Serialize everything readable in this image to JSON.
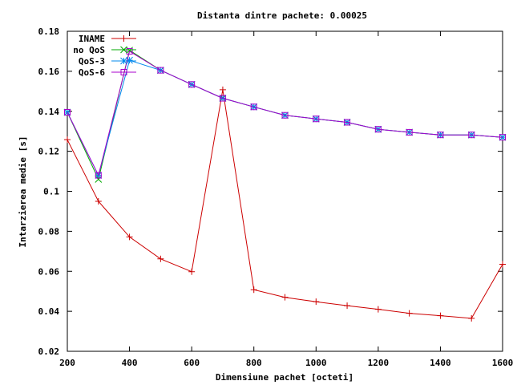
{
  "chart_data": {
    "type": "line",
    "title": "Distanta dintre pachete: 0.00025",
    "xlabel": "Dimensiune pachet [octeti]",
    "ylabel": "Intarzierea medie [s]",
    "xlim": [
      200,
      1600
    ],
    "ylim": [
      0.02,
      0.18
    ],
    "x_ticks": [
      200,
      400,
      600,
      800,
      1000,
      1200,
      1400,
      1600
    ],
    "y_ticks": [
      0.02,
      0.04,
      0.06,
      0.08,
      0.1,
      0.12,
      0.14,
      0.16,
      0.18
    ],
    "x_tick_labels": [
      "200",
      "400",
      "600",
      "800",
      "1000",
      "1200",
      "1400",
      "1600"
    ],
    "y_tick_labels": [
      "0.02",
      "0.04",
      "0.06",
      "0.08",
      "0.1",
      "0.12",
      "0.14",
      "0.16",
      "0.18"
    ],
    "grid": false,
    "legend_position": "top-left",
    "x": [
      200,
      300,
      400,
      500,
      600,
      700,
      800,
      900,
      1000,
      1100,
      1200,
      1300,
      1400,
      1500,
      1600
    ],
    "series": [
      {
        "name": "INAME",
        "color": "#cc0000",
        "marker": "plus",
        "values": [
          0.1258,
          0.095,
          0.0772,
          0.0662,
          0.0598,
          0.1508,
          0.0508,
          0.047,
          0.0448,
          0.0428,
          0.041,
          0.039,
          0.0378,
          0.0365,
          0.0635
        ]
      },
      {
        "name": "no QoS",
        "color": "#00aa00",
        "marker": "cross",
        "values": [
          0.1395,
          0.106,
          0.1705,
          0.1605,
          0.1534,
          0.1465,
          0.1422,
          0.138,
          0.1362,
          0.1345,
          0.131,
          0.1295,
          0.1282,
          0.1282,
          0.127
        ]
      },
      {
        "name": "QoS-3",
        "color": "#0088ee",
        "marker": "star",
        "values": [
          0.1395,
          0.108,
          0.1655,
          0.1605,
          0.1534,
          0.1465,
          0.1422,
          0.138,
          0.1362,
          0.1345,
          0.131,
          0.1295,
          0.1282,
          0.1282,
          0.127
        ]
      },
      {
        "name": "QoS-6",
        "color": "#aa00cc",
        "marker": "square",
        "values": [
          0.1395,
          0.108,
          0.17,
          0.1605,
          0.1534,
          0.1465,
          0.1422,
          0.138,
          0.1362,
          0.1345,
          0.131,
          0.1295,
          0.1282,
          0.1282,
          0.127
        ]
      }
    ]
  }
}
